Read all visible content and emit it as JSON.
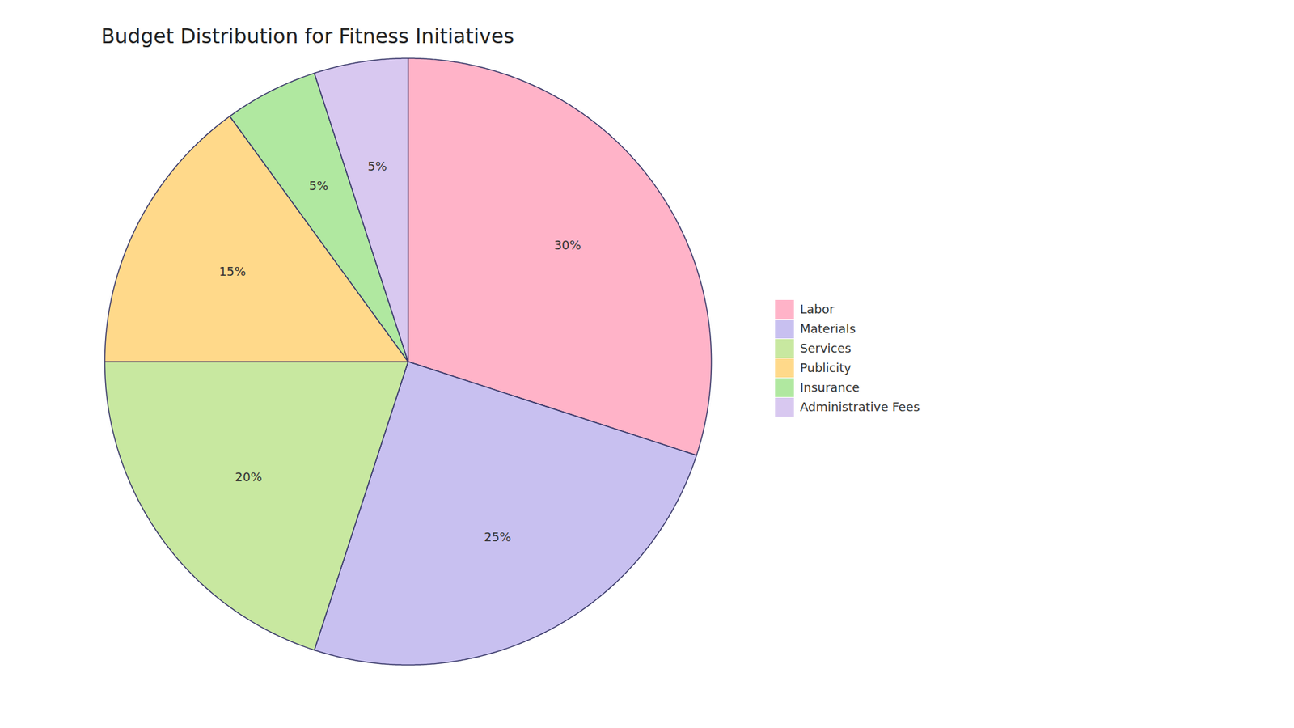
{
  "chart_data": {
    "type": "pie",
    "title": "Budget Distribution for Fitness Initiatives",
    "categories": [
      "Labor",
      "Materials",
      "Services",
      "Publicity",
      "Insurance",
      "Administrative Fees"
    ],
    "values": [
      30,
      25,
      20,
      15,
      5,
      5
    ],
    "value_labels": [
      "30%",
      "25%",
      "20%",
      "15%",
      "5%",
      "5%"
    ],
    "colors": [
      "#FFB3C8",
      "#C8C0F0",
      "#C8E8A0",
      "#FFD98A",
      "#B0E8A0",
      "#D8C8F0"
    ],
    "data_labels": true,
    "legend": "right"
  }
}
